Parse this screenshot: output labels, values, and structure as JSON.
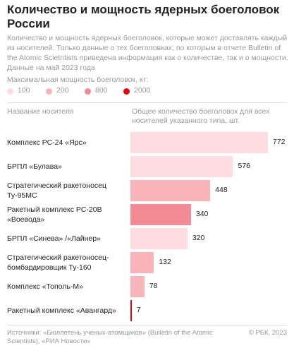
{
  "chart_data": {
    "type": "bar",
    "orientation": "horizontal",
    "title": "Количество и мощность ядерных боеголовок России",
    "subtitle": "Количество и мощность ядерных боеголовок, которые может доставлять каждый из носителей. Только данные о тех боеголовках, по которым в отчете Bulletin of the Atomic Scietntists приведена информация как о количестве, так и о мощности. Данные на май 2023 года",
    "legend": {
      "title": "Максимальная мощность боеголовок, кт:",
      "items": [
        {
          "label": "100",
          "color": "#fddde1"
        },
        {
          "label": "200",
          "color": "#f9b4ba"
        },
        {
          "label": "800",
          "color": "#f28b93"
        },
        {
          "label": "2000",
          "color": "#e30613"
        }
      ]
    },
    "category_header": "Название носителя",
    "value_header": "Общее количество боеголовок для всех носителей указанного типа, шт.",
    "categories": [
      "Комплекс РС-24 «Ярс»",
      "БРПЛ «Булава»",
      "Стратегический ракетоносец Ту-95МС",
      "Ракетный комплекс РС-20В «Воевода»",
      "БРПЛ «Синева» /«Лайнер»",
      "Стратегический ракетоносец-бомбардировщик Ту-160",
      "Комплекс «Тополь-М»",
      "Ракетный комплекс «Авангард»"
    ],
    "values": [
      772,
      576,
      448,
      340,
      320,
      132,
      78,
      7
    ],
    "colors": [
      "#fddde1",
      "#fddde1",
      "#f9b4ba",
      "#f28b93",
      "#fddde1",
      "#f9b4ba",
      "#f9b4ba",
      "#e30613"
    ],
    "source": "Источники: «Бюллетень ученых-атомщиков» (Bulletin of the Atomic Scientists), «РИА Новости»",
    "credit": "© РБК, 2023"
  }
}
